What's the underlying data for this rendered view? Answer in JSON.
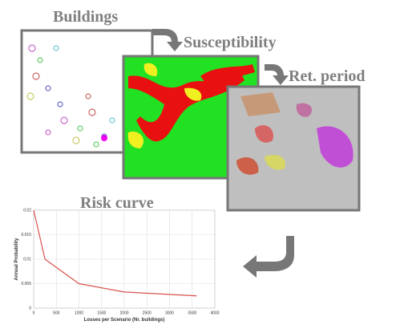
{
  "steps": [
    "Buildings",
    "Susceptibility",
    "Ret. period"
  ],
  "chart_data": {
    "type": "line",
    "title": "Risk curve",
    "x_label": "Losses per Scenario (Nr. buildings)",
    "y_label": "Annual Probability",
    "series": [
      {
        "color": "#d9534f",
        "x": [
          0,
          250,
          1000,
          2000,
          3600
        ],
        "values": [
          0.02,
          0.01,
          0.005,
          0.0033,
          0.0025
        ]
      }
    ],
    "xlim": [
      0,
      4000
    ],
    "xticks": [
      0,
      500,
      1000,
      1500,
      2000,
      2500,
      3000,
      3500,
      4000
    ],
    "ylim": [
      0,
      0.02
    ],
    "yticks": [
      0,
      0.005,
      0.01,
      0.015,
      0.02
    ],
    "grid": true
  }
}
